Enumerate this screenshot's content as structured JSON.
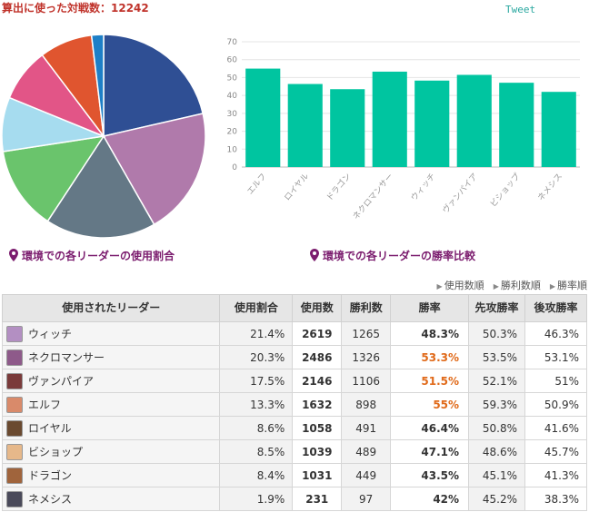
{
  "header": {
    "title": "算出に使った対戦数：12242",
    "tweet_label": "Tweet"
  },
  "colors": {
    "bar": "#00c5a0",
    "rate_highlight": "#e06a1a",
    "caption": "#7b1c6e",
    "title": "#c0332b"
  },
  "captions": {
    "pie": "環境での各リーダーの使用割合",
    "bar": "環境での各リーダーの勝率比較"
  },
  "chart_data": [
    {
      "type": "pie",
      "title": "",
      "slices": [
        {
          "label": "ウィッチ",
          "value": 21.4,
          "color": "#2f4f94"
        },
        {
          "label": "ネクロマンサー",
          "value": 20.3,
          "color": "#b07aab"
        },
        {
          "label": "ヴァンパイア",
          "value": 17.5,
          "color": "#647886"
        },
        {
          "label": "エルフ",
          "value": 13.3,
          "color": "#6ac46c"
        },
        {
          "label": "ロイヤル",
          "value": 8.6,
          "color": "#a6dcef"
        },
        {
          "label": "ビショップ",
          "value": 8.5,
          "color": "#e25587"
        },
        {
          "label": "ドラゴン",
          "value": 8.4,
          "color": "#e0552f"
        },
        {
          "label": "ネメシス",
          "value": 1.9,
          "color": "#1e7fc7"
        }
      ]
    },
    {
      "type": "bar",
      "title": "",
      "categories": [
        "エルフ",
        "ロイヤル",
        "ドラゴン",
        "ネクロマンサー",
        "ウィッチ",
        "ヴァンパイア",
        "ビショップ",
        "ネメシス"
      ],
      "values": [
        55,
        46.4,
        43.5,
        53.3,
        48.3,
        51.5,
        47.1,
        42
      ],
      "ylim": [
        0,
        70
      ],
      "yticks": [
        0,
        10,
        20,
        30,
        40,
        50,
        60,
        70
      ],
      "grid": true,
      "xlabel": "",
      "ylabel": ""
    }
  ],
  "sort_links": [
    "使用数順",
    "勝利数順",
    "勝率順"
  ],
  "table": {
    "headers": {
      "leader": "使用されたリーダー",
      "share": "使用割合",
      "uses": "使用数",
      "wins": "勝利数",
      "rate": "勝率",
      "first": "先攻勝率",
      "second": "後攻勝率"
    },
    "rows": [
      {
        "leader": "ウィッチ",
        "avatar": "#b38fc2",
        "share": "21.4%",
        "uses": "2619",
        "wins": "1265",
        "rate": "48.3%",
        "highlight": false,
        "first": "50.3%",
        "second": "46.3%"
      },
      {
        "leader": "ネクロマンサー",
        "avatar": "#8e5a8a",
        "share": "20.3%",
        "uses": "2486",
        "wins": "1326",
        "rate": "53.3%",
        "highlight": true,
        "first": "53.5%",
        "second": "53.1%"
      },
      {
        "leader": "ヴァンパイア",
        "avatar": "#7a3b3b",
        "share": "17.5%",
        "uses": "2146",
        "wins": "1106",
        "rate": "51.5%",
        "highlight": true,
        "first": "52.1%",
        "second": "51%"
      },
      {
        "leader": "エルフ",
        "avatar": "#d98a6a",
        "share": "13.3%",
        "uses": "1632",
        "wins": "898",
        "rate": "55%",
        "highlight": true,
        "first": "59.3%",
        "second": "50.9%"
      },
      {
        "leader": "ロイヤル",
        "avatar": "#6a4a30",
        "share": "8.6%",
        "uses": "1058",
        "wins": "491",
        "rate": "46.4%",
        "highlight": false,
        "first": "50.8%",
        "second": "41.6%"
      },
      {
        "leader": "ビショップ",
        "avatar": "#e6b88a",
        "share": "8.5%",
        "uses": "1039",
        "wins": "489",
        "rate": "47.1%",
        "highlight": false,
        "first": "48.6%",
        "second": "45.7%"
      },
      {
        "leader": "ドラゴン",
        "avatar": "#a0643c",
        "share": "8.4%",
        "uses": "1031",
        "wins": "449",
        "rate": "43.5%",
        "highlight": false,
        "first": "45.1%",
        "second": "41.3%"
      },
      {
        "leader": "ネメシス",
        "avatar": "#4a4a5a",
        "share": "1.9%",
        "uses": "231",
        "wins": "97",
        "rate": "42%",
        "highlight": false,
        "first": "45.2%",
        "second": "38.3%"
      }
    ]
  }
}
